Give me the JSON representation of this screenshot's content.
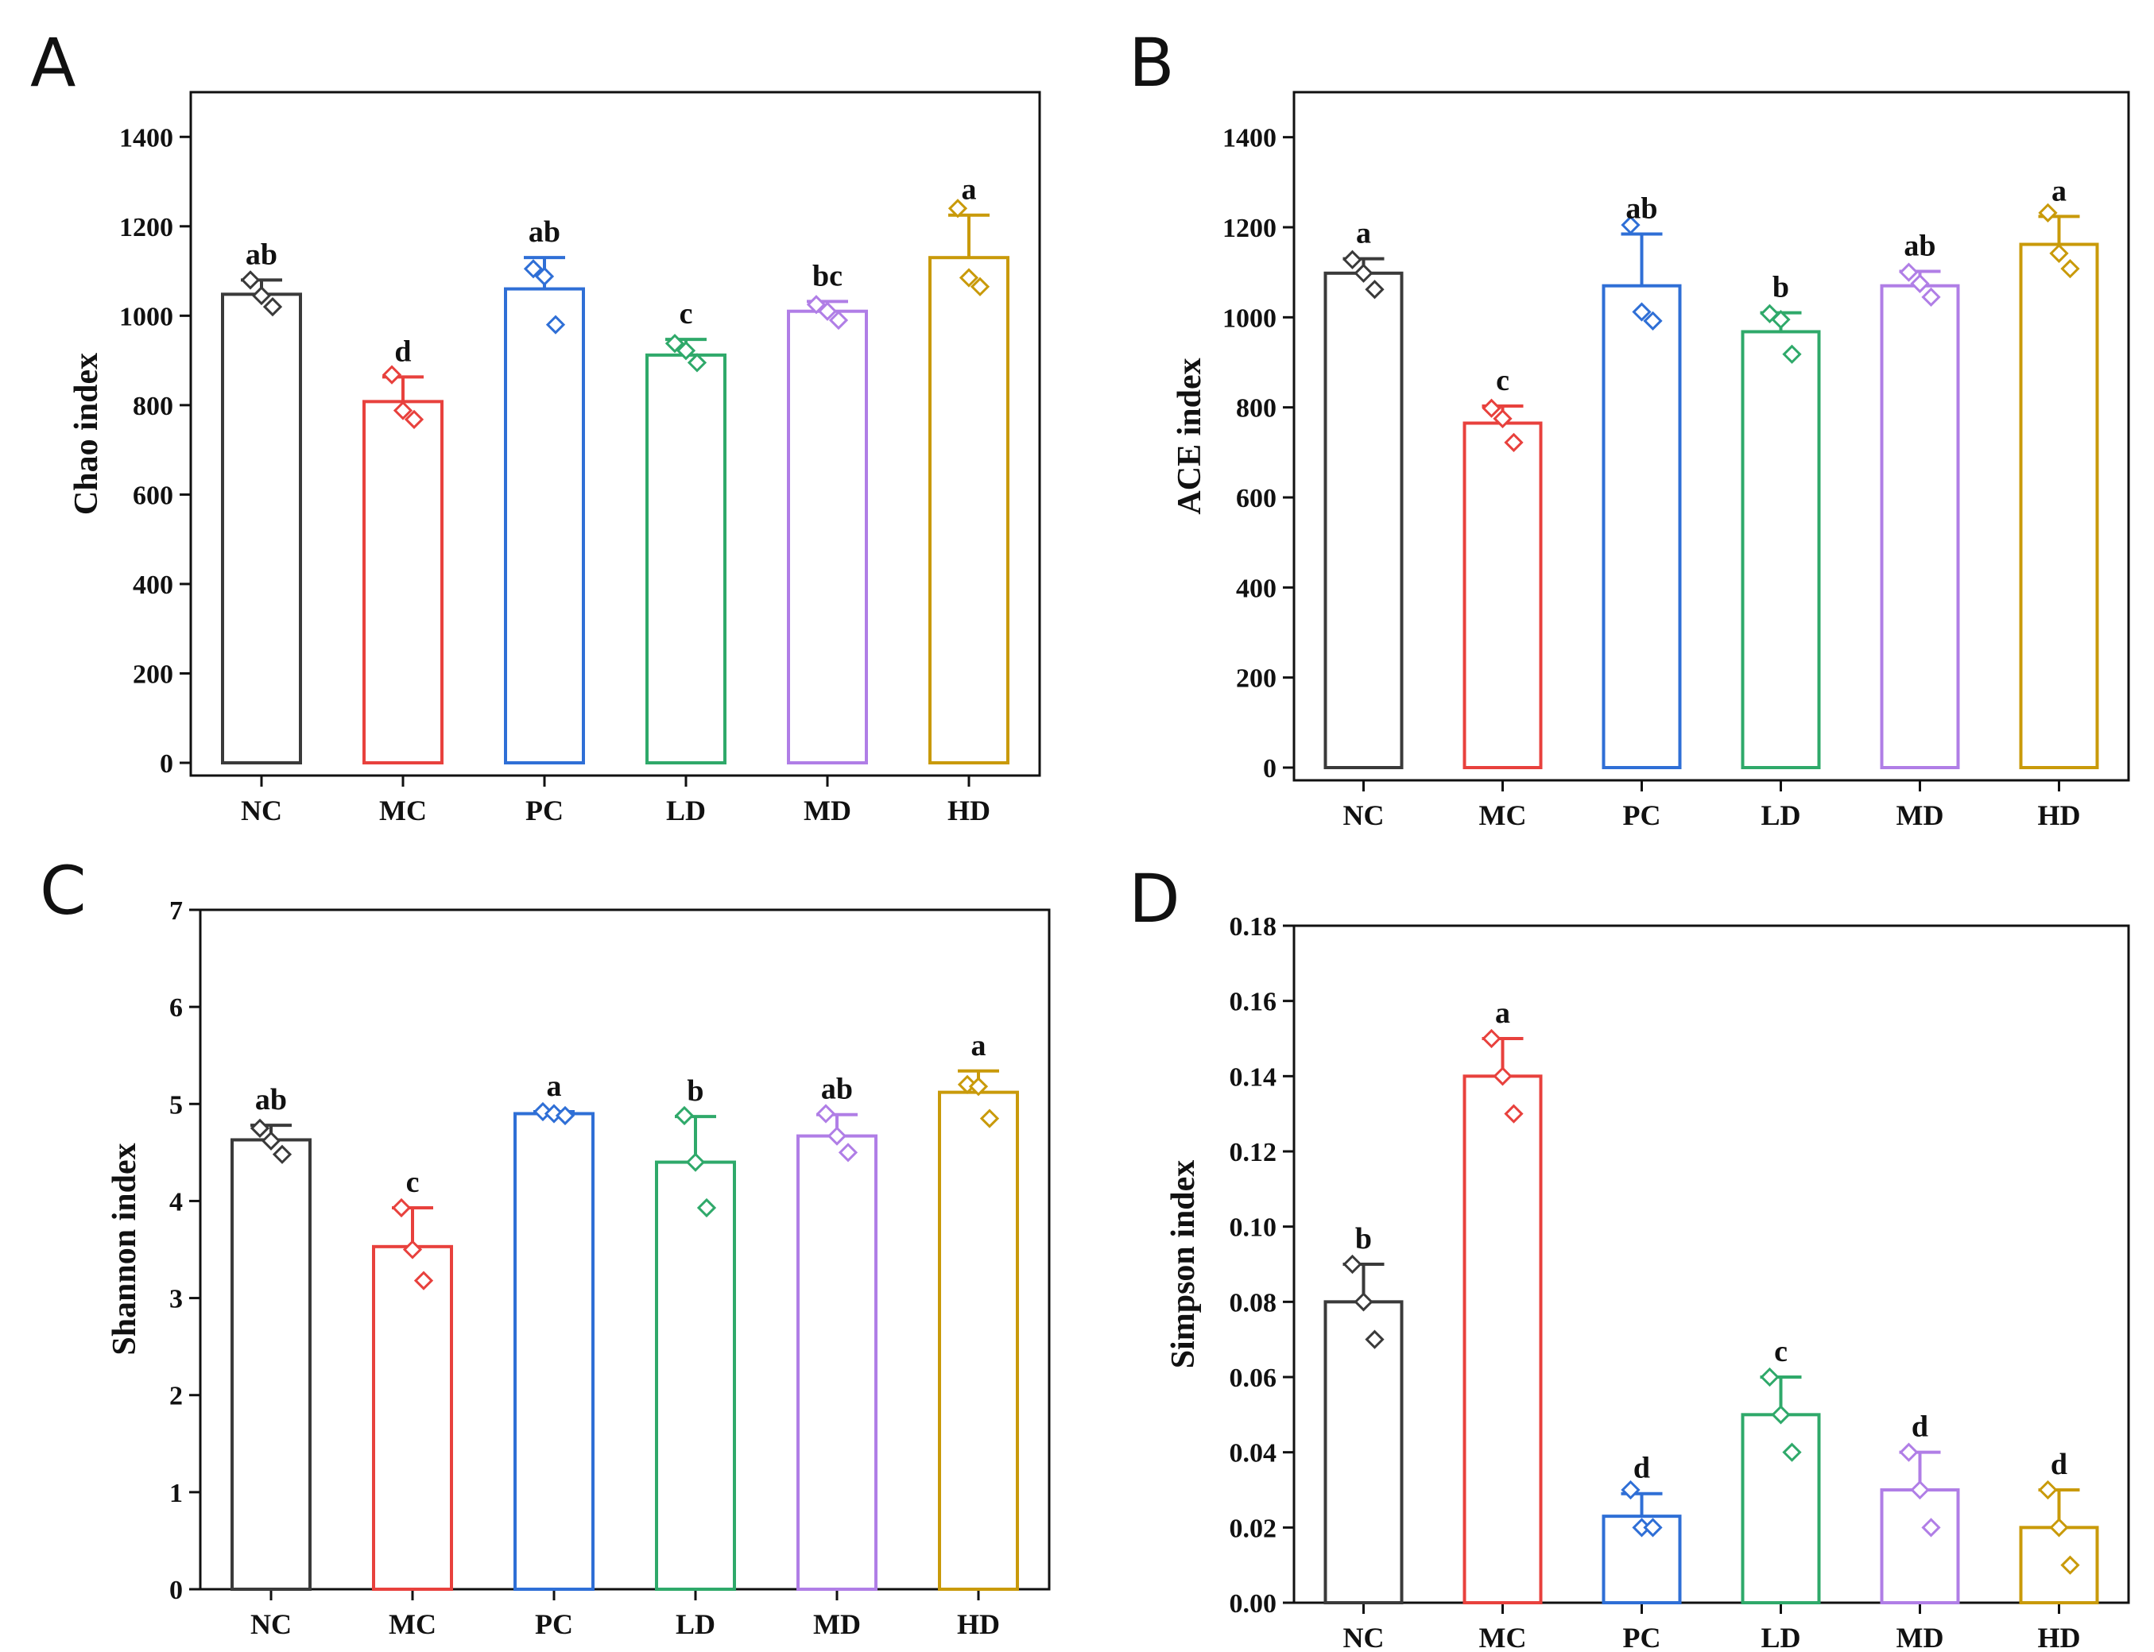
{
  "colors": {
    "NC": "#3a3a3a",
    "MC": "#e8413d",
    "PC": "#2f6fd6",
    "LD": "#2fa96a",
    "MD": "#b07ee6",
    "HD": "#c99a0a"
  },
  "chart_data": [
    {
      "type": "bar",
      "panel": "A",
      "title": "",
      "xlabel": "",
      "ylabel": "Chao index",
      "ylim": [
        0,
        1500
      ],
      "yticks": [
        0,
        200,
        400,
        600,
        800,
        1000,
        1200,
        1400
      ],
      "categories": [
        "NC",
        "MC",
        "PC",
        "LD",
        "MD",
        "HD"
      ],
      "values": [
        1048,
        808,
        1060,
        912,
        1010,
        1130
      ],
      "errors": [
        32,
        55,
        70,
        35,
        22,
        95
      ],
      "points": [
        [
          1080,
          1045,
          1020
        ],
        [
          868,
          788,
          768
        ],
        [
          1105,
          1088,
          980
        ],
        [
          938,
          922,
          895
        ],
        [
          1025,
          1010,
          990
        ],
        [
          1240,
          1085,
          1065
        ]
      ],
      "significance": [
        "ab",
        "d",
        "ab",
        "c",
        "bc",
        "a"
      ]
    },
    {
      "type": "bar",
      "panel": "B",
      "title": "",
      "xlabel": "",
      "ylabel": "ACE  index",
      "ylim": [
        0,
        1500
      ],
      "yticks": [
        0,
        200,
        400,
        600,
        800,
        1000,
        1200,
        1400
      ],
      "categories": [
        "NC",
        "MC",
        "PC",
        "LD",
        "MD",
        "HD"
      ],
      "values": [
        1098,
        765,
        1070,
        968,
        1070,
        1162
      ],
      "errors": [
        32,
        38,
        115,
        42,
        32,
        62
      ],
      "points": [
        [
          1128,
          1098,
          1062
        ],
        [
          798,
          775,
          722
        ],
        [
          1205,
          1012,
          992
        ],
        [
          1008,
          995,
          918
        ],
        [
          1100,
          1075,
          1045
        ],
        [
          1232,
          1142,
          1108
        ]
      ],
      "significance": [
        "a",
        "c",
        "ab",
        "b",
        "ab",
        "a"
      ]
    },
    {
      "type": "bar",
      "panel": "C",
      "title": "",
      "xlabel": "",
      "ylabel": "Shannon index",
      "ylim": [
        0,
        7
      ],
      "yticks": [
        0,
        1,
        2,
        3,
        4,
        5,
        6,
        7
      ],
      "categories": [
        "NC",
        "MC",
        "PC",
        "LD",
        "MD",
        "HD"
      ],
      "values": [
        4.63,
        3.53,
        4.9,
        4.4,
        4.67,
        5.12
      ],
      "errors": [
        0.15,
        0.4,
        0.02,
        0.47,
        0.22,
        0.22
      ],
      "points": [
        [
          4.75,
          4.62,
          4.48
        ],
        [
          3.93,
          3.5,
          3.18
        ],
        [
          4.92,
          4.9,
          4.88
        ],
        [
          4.88,
          4.4,
          3.93
        ],
        [
          4.9,
          4.67,
          4.5
        ],
        [
          5.2,
          5.18,
          4.85
        ]
      ],
      "significance": [
        "ab",
        "c",
        "a",
        "b",
        "ab",
        "a"
      ]
    },
    {
      "type": "bar",
      "panel": "D",
      "title": "",
      "xlabel": "",
      "ylabel": "Simpson  index",
      "ylim": [
        0,
        0.18
      ],
      "yticks": [
        0.0,
        0.02,
        0.04,
        0.06,
        0.08,
        0.1,
        0.12,
        0.14,
        0.16,
        0.18
      ],
      "categories": [
        "NC",
        "MC",
        "PC",
        "LD",
        "MD",
        "HD"
      ],
      "values": [
        0.08,
        0.14,
        0.023,
        0.05,
        0.03,
        0.02
      ],
      "errors": [
        0.01,
        0.01,
        0.006,
        0.01,
        0.01,
        0.01
      ],
      "points": [
        [
          0.09,
          0.08,
          0.07
        ],
        [
          0.15,
          0.14,
          0.13
        ],
        [
          0.03,
          0.02,
          0.02
        ],
        [
          0.06,
          0.05,
          0.04
        ],
        [
          0.04,
          0.03,
          0.02
        ],
        [
          0.03,
          0.02,
          0.01
        ]
      ],
      "significance": [
        "b",
        "a",
        "d",
        "c",
        "d",
        "d"
      ]
    }
  ]
}
